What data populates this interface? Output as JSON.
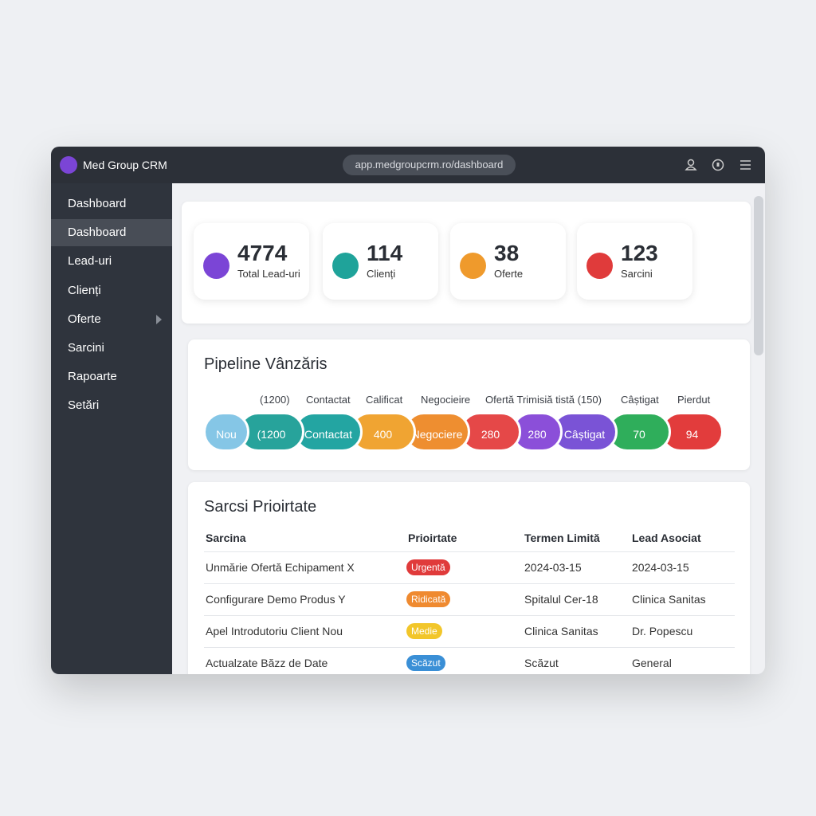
{
  "app": {
    "logo": "Med Group CRM",
    "url": "app.medgroupcrm.ro/dashboard"
  },
  "nav": [
    "Dashboard",
    "Dashboard",
    "Lead-uri",
    "Clienți",
    "Oferte",
    "Sarcini",
    "Rapoarte",
    "Setări"
  ],
  "stats": [
    {
      "value": 4774,
      "label": "Total Lead-uri",
      "color": "#7b45d6"
    },
    {
      "value": 114,
      "label": "Clienți",
      "color": "#1fa39a"
    },
    {
      "value": 38,
      "label": "Oferte",
      "color": "#ef9a2c"
    },
    {
      "value": 123,
      "label": "Sarcini",
      "color": "#e03b3b"
    }
  ],
  "pipeline": {
    "title": "Pipeline Vânzăris",
    "labels": [
      "(1200)",
      "Contactat",
      "Calificat",
      "Negocieire",
      "Ofertă Trimisiă tistă (150)",
      "Câștigat",
      "Pierdut"
    ],
    "stages": [
      {
        "label": "Nou",
        "color": "#85c6e6"
      },
      {
        "label": "(1200",
        "color": "#27a39b"
      },
      {
        "label": "Contactat",
        "color": "#23a5a2"
      },
      {
        "label": "400",
        "color": "#f0a432"
      },
      {
        "label": "Negociere",
        "color": "#ee8e30"
      },
      {
        "label": "280",
        "color": "#e54848"
      },
      {
        "label": "280",
        "color": "#8b4fd9"
      },
      {
        "label": "Câștigat",
        "color": "#7a53d6"
      },
      {
        "label": "70",
        "color": "#2fae5b"
      },
      {
        "label": "94",
        "color": "#e23c3c"
      }
    ]
  },
  "tasks": {
    "title": "Sarcsi Prioirtate",
    "headers": [
      "Sarcina",
      "Prioirtate",
      "Termen Limită",
      "Lead Asociat"
    ],
    "rows": [
      {
        "task": "Unmărie Ofertă Echipament X",
        "priority": "Urgentă",
        "color": "#e03b3b",
        "deadline": "2024-03-15",
        "lead": "2024-03-15"
      },
      {
        "task": "Configurare Demo Produs Y",
        "priority": "Ridicată",
        "color": "#ef8a30",
        "deadline": "Spitalul Cer-18",
        "lead": "Clinica Sanitas"
      },
      {
        "task": "Apel Introdutoriu Client Nou",
        "priority": "Medie",
        "color": "#f2c62a",
        "deadline": "Clinica Sanitas",
        "lead": "Dr. Popescu"
      },
      {
        "task": "Actualzate Băzz de Date",
        "priority": "Scăzut",
        "color": "#3a8fd6",
        "deadline": "Scăzut",
        "lead": "General"
      }
    ]
  }
}
